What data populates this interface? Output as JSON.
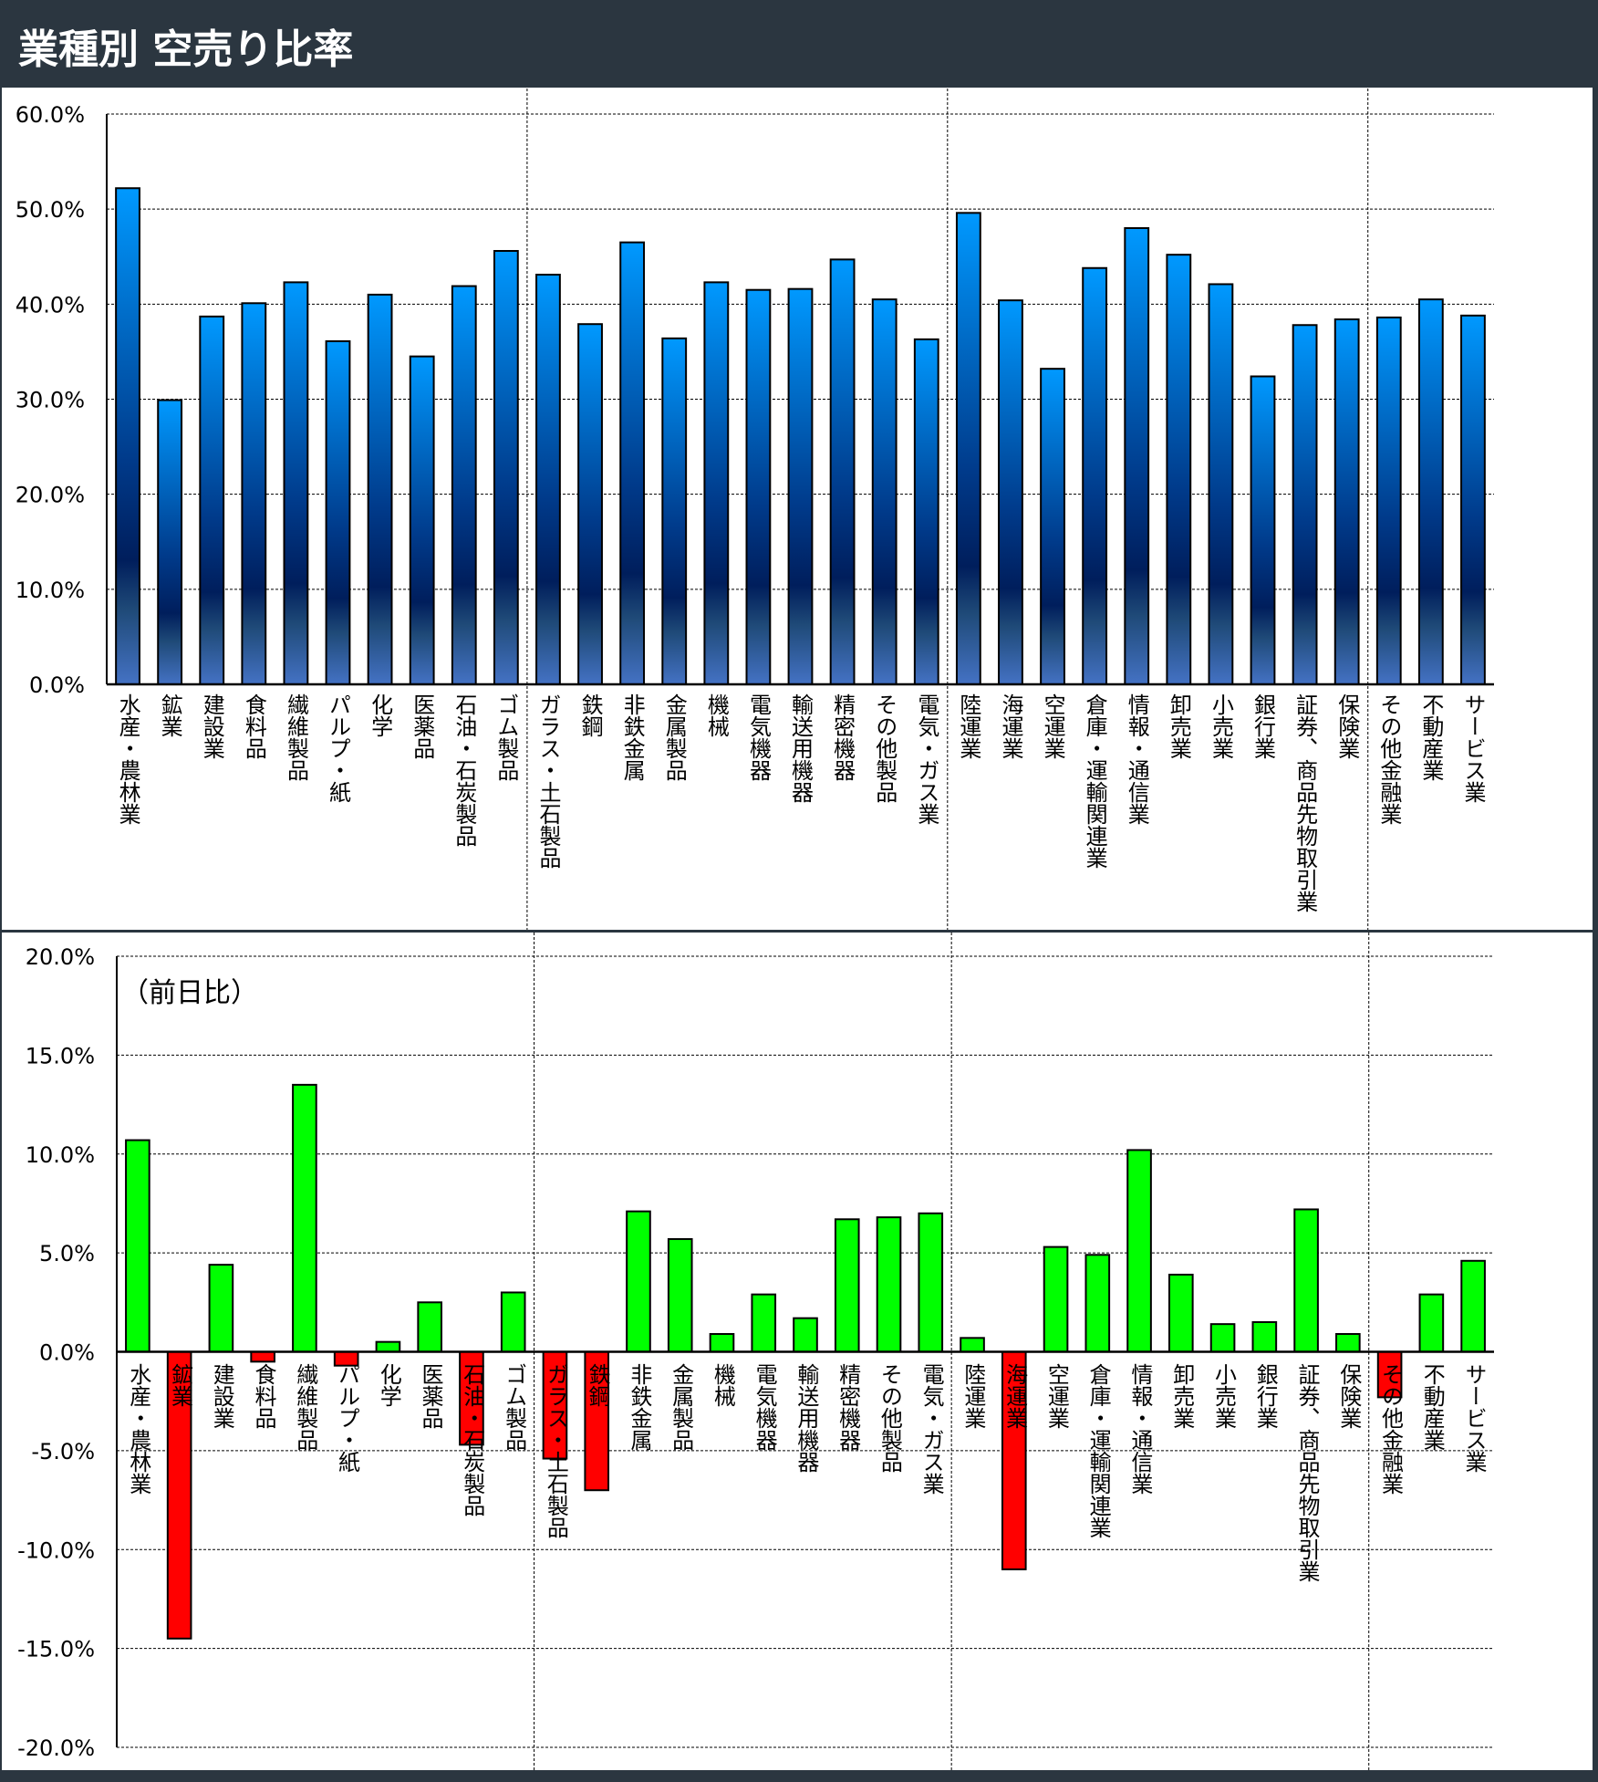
{
  "title": "業種別 空売り比率",
  "colors": {
    "top_bar_light": "#0099ff",
    "top_bar_dark": "#001e5c",
    "top_bar_bottom": "#4472c4",
    "positive": "#00ff00",
    "negative": "#ff0000"
  },
  "chart_data": [
    {
      "type": "bar",
      "title": "業種別 空売り比率",
      "ylim": [
        0,
        60
      ],
      "yticks": [
        "0.0%",
        "10.0%",
        "20.0%",
        "30.0%",
        "40.0%",
        "50.0%",
        "60.0%"
      ],
      "grid": true,
      "categories": [
        "水産・農林業",
        "鉱業",
        "建設業",
        "食料品",
        "繊維製品",
        "パルプ・紙",
        "化学",
        "医薬品",
        "石油・石炭製品",
        "ゴム製品",
        "ガラス・土石製品",
        "鉄鋼",
        "非鉄金属",
        "金属製品",
        "機械",
        "電気機器",
        "輸送用機器",
        "精密機器",
        "その他製品",
        "電気・ガス業",
        "陸運業",
        "海運業",
        "空運業",
        "倉庫・運輸関連業",
        "情報・通信業",
        "卸売業",
        "小売業",
        "銀行業",
        "証券、商品先物取引業",
        "保険業",
        "その他金融業",
        "不動産業",
        "サービス業"
      ],
      "values": [
        52.2,
        29.9,
        38.7,
        40.1,
        42.3,
        36.1,
        41.0,
        34.5,
        41.9,
        45.6,
        43.1,
        37.9,
        46.5,
        36.4,
        42.3,
        41.5,
        41.6,
        44.7,
        40.5,
        36.3,
        49.6,
        40.4,
        33.2,
        43.8,
        48.0,
        45.2,
        42.1,
        32.4,
        37.8,
        38.4,
        38.6,
        40.5,
        38.8
      ]
    },
    {
      "type": "bar",
      "annotation": "（前日比）",
      "ylim": [
        -20,
        20
      ],
      "yticks": [
        "-20.0%",
        "-15.0%",
        "-10.0%",
        "-5.0%",
        "0.0%",
        "5.0%",
        "10.0%",
        "15.0%",
        "20.0%"
      ],
      "grid": true,
      "values": [
        10.7,
        -14.5,
        4.4,
        -0.5,
        13.5,
        -0.7,
        0.5,
        2.5,
        -4.7,
        3.0,
        -5.4,
        -7.0,
        7.1,
        5.7,
        0.9,
        2.9,
        1.7,
        6.7,
        6.8,
        7.0,
        0.7,
        -11.0,
        5.3,
        4.9,
        10.2,
        3.9,
        1.4,
        1.5,
        7.2,
        0.9,
        -2.3,
        2.9,
        4.6
      ]
    }
  ]
}
